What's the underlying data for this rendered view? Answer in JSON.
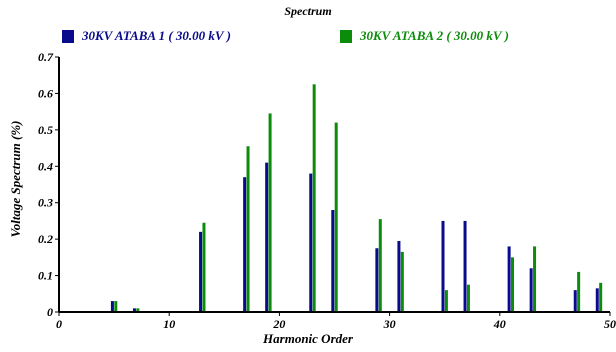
{
  "chart_data": {
    "type": "bar",
    "title": "Spectrum",
    "xlabel": "Harmonic Order",
    "ylabel": "Voltage Spectrum (%)",
    "xlim": [
      0,
      50
    ],
    "ylim": [
      0,
      0.7
    ],
    "x_ticks": [
      0,
      10,
      20,
      30,
      40,
      50
    ],
    "y_ticks": [
      0,
      0.1,
      0.2,
      0.3,
      0.4,
      0.5,
      0.6,
      0.7
    ],
    "grid": false,
    "legend_position": "top",
    "series": [
      {
        "name": "30KV ATABA 1 ( 30.00 kV )",
        "color": "#0a0a8c",
        "x": [
          5,
          7,
          13,
          17,
          19,
          23,
          25,
          29,
          31,
          35,
          37,
          41,
          43,
          47,
          49
        ],
        "values": [
          0.03,
          0.01,
          0.22,
          0.37,
          0.41,
          0.38,
          0.28,
          0.175,
          0.195,
          0.25,
          0.25,
          0.18,
          0.12,
          0.06,
          0.065
        ]
      },
      {
        "name": "30KV ATABA 2 ( 30.00 kV )",
        "color": "#0b8c0b",
        "x": [
          5,
          7,
          13,
          17,
          19,
          23,
          25,
          29,
          31,
          35,
          37,
          41,
          43,
          47,
          49
        ],
        "values": [
          0.03,
          0.01,
          0.245,
          0.455,
          0.545,
          0.625,
          0.52,
          0.255,
          0.165,
          0.06,
          0.075,
          0.15,
          0.18,
          0.11,
          0.08
        ]
      }
    ]
  }
}
